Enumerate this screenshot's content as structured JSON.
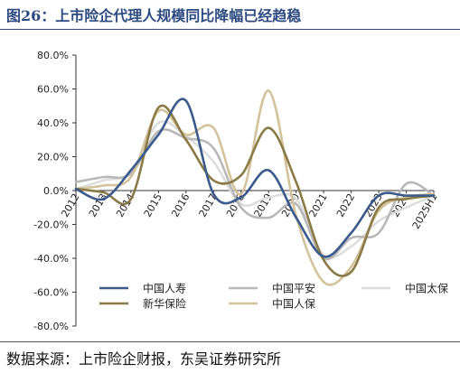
{
  "figure_title": "图26：上市险企代理人规模同比降幅已经趋稳",
  "source_note": "数据来源：上市险企财报，东吴证券研究所",
  "chart_data": {
    "type": "line",
    "smooth": true,
    "categories": [
      "2012",
      "2013",
      "2014",
      "2015",
      "2016",
      "2017",
      "2018",
      "2019",
      "2020",
      "2021",
      "2022",
      "2023",
      "2024",
      "2025H1"
    ],
    "y_ticks": [
      "80.0%",
      "60.0%",
      "40.0%",
      "20.0%",
      "0.0%",
      "-20.0%",
      "-40.0%",
      "-60.0%",
      "-80.0%"
    ],
    "ylim": [
      -80,
      80
    ],
    "y_unit": "%",
    "legend_position": "bottom",
    "grid": false,
    "series": [
      {
        "name": "中国人寿",
        "color": "#3b5a8c",
        "values": [
          1,
          -5,
          12,
          33,
          53,
          -2,
          -4,
          12,
          -16,
          -39,
          -25,
          -3,
          -3,
          -3
        ]
      },
      {
        "name": "中国平安",
        "color": "#b8b8b8",
        "values": [
          5,
          8,
          10,
          35,
          31,
          25,
          -10,
          -16,
          -8,
          -40,
          -28,
          -25,
          4,
          -3
        ]
      },
      {
        "name": "中国太保",
        "color": "#dddddd",
        "values": [
          1,
          6,
          11,
          40,
          32,
          17,
          -8,
          -4,
          -5,
          -38,
          -33,
          -18,
          -10,
          -3
        ]
      },
      {
        "name": "新华保险",
        "color": "#8a7a45",
        "values": [
          1,
          -1,
          -5,
          49,
          30,
          6,
          9,
          37,
          5,
          -41,
          -48,
          -10,
          -5,
          -3
        ]
      },
      {
        "name": "中国人保",
        "color": "#d2c39a",
        "values": [
          1,
          3,
          8,
          47,
          33,
          37,
          -2,
          59,
          -15,
          -54,
          -45,
          -12,
          -4,
          -2
        ]
      }
    ]
  }
}
